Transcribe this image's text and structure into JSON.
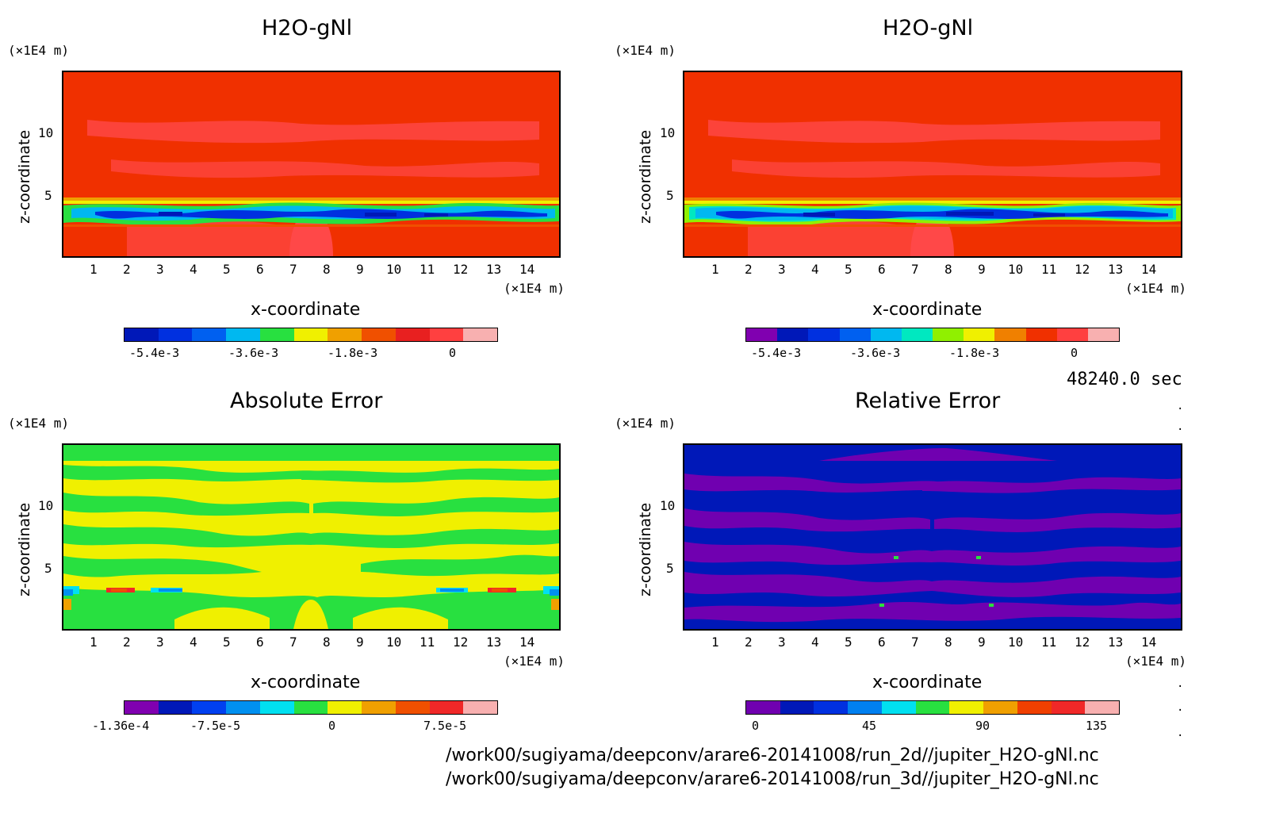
{
  "panels": [
    {
      "title": "H2O-gNl",
      "y_unit": "(×1E4 m)",
      "x_unit": "(×1E4 m)",
      "xlabel": "x-coordinate",
      "ylabel": "z-coordinate",
      "colorbar_labels": [
        "-5.4e-3",
        "-3.6e-3",
        "-1.8e-3",
        "0"
      ],
      "colors": [
        "#0018b8",
        "#0030e0",
        "#0060f0",
        "#00b8f0",
        "#28e040",
        "#f0f000",
        "#f0a000",
        "#f05000",
        "#e82020",
        "#ff4040",
        "#f8b0b0"
      ]
    },
    {
      "title": "H2O-gNl",
      "y_unit": "(×1E4 m)",
      "x_unit": "(×1E4 m)",
      "xlabel": "x-coordinate",
      "ylabel": "z-coordinate",
      "colorbar_labels": [
        "-5.4e-3",
        "-3.6e-3",
        "-1.8e-3",
        "0"
      ],
      "colors": [
        "#8000b0",
        "#0018b8",
        "#0030e0",
        "#0060f0",
        "#00b8f0",
        "#00e8c0",
        "#90f000",
        "#f0f000",
        "#f08000",
        "#f03000",
        "#ff4040",
        "#f8b0b0"
      ]
    },
    {
      "title": "Absolute Error",
      "y_unit": "(×1E4 m)",
      "x_unit": "(×1E4 m)",
      "xlabel": "x-coordinate",
      "ylabel": "z-coordinate",
      "colorbar_labels": [
        "-1.36e-4",
        "-7.5e-5",
        "0",
        "7.5e-5"
      ],
      "colors": [
        "#8000b0",
        "#0018b8",
        "#0040f0",
        "#0090f0",
        "#00e0f0",
        "#28e040",
        "#f0f000",
        "#f0a000",
        "#f05000",
        "#f02828",
        "#f8b0b0"
      ]
    },
    {
      "title": "Relative Error",
      "y_unit": "(×1E4 m)",
      "x_unit": "(×1E4 m)",
      "xlabel": "x-coordinate",
      "ylabel": "z-coordinate",
      "colorbar_labels": [
        "0",
        "45",
        "90",
        "135"
      ],
      "colors": [
        "#7000b0",
        "#0018b8",
        "#0030e0",
        "#0080f0",
        "#00e0f0",
        "#28e040",
        "#f0f000",
        "#f0a000",
        "#f04000",
        "#f02828",
        "#f8b0b0"
      ]
    }
  ],
  "time_label": "48240.0 sec",
  "file_paths": [
    "/work00/sugiyama/deepconv/arare6-20141008/run_2d//jupiter_H2O-gNl.nc",
    "/work00/sugiyama/deepconv/arare6-20141008/run_3d//jupiter_H2O-gNl.nc"
  ],
  "chart_data": [
    {
      "type": "heatmap",
      "title": "H2O-gNl",
      "xlabel": "x-coordinate (×1E4 m)",
      "ylabel": "z-coordinate (×1E4 m)",
      "xlim": [
        0,
        15
      ],
      "ylim": [
        0,
        15
      ],
      "x_ticks": [
        1,
        2,
        3,
        4,
        5,
        6,
        7,
        8,
        9,
        10,
        11,
        12,
        13,
        14
      ],
      "y_ticks": [
        5,
        10
      ],
      "colorbar_ticks": [
        -0.0054,
        -0.0036,
        -0.0018,
        0
      ]
    },
    {
      "type": "heatmap",
      "title": "H2O-gNl",
      "xlabel": "x-coordinate (×1E4 m)",
      "ylabel": "z-coordinate (×1E4 m)",
      "xlim": [
        0,
        15
      ],
      "ylim": [
        0,
        15
      ],
      "x_ticks": [
        1,
        2,
        3,
        4,
        5,
        6,
        7,
        8,
        9,
        10,
        11,
        12,
        13,
        14
      ],
      "y_ticks": [
        5,
        10
      ],
      "colorbar_ticks": [
        -0.0054,
        -0.0036,
        -0.0018,
        0
      ]
    },
    {
      "type": "heatmap",
      "title": "Absolute Error",
      "xlabel": "x-coordinate (×1E4 m)",
      "ylabel": "z-coordinate (×1E4 m)",
      "xlim": [
        0,
        15
      ],
      "ylim": [
        0,
        15
      ],
      "x_ticks": [
        1,
        2,
        3,
        4,
        5,
        6,
        7,
        8,
        9,
        10,
        11,
        12,
        13,
        14
      ],
      "y_ticks": [
        5,
        10
      ],
      "colorbar_ticks": [
        -0.000136,
        -7.5e-05,
        0,
        7.5e-05
      ]
    },
    {
      "type": "heatmap",
      "title": "Relative Error",
      "xlabel": "x-coordinate (×1E4 m)",
      "ylabel": "z-coordinate (×1E4 m)",
      "xlim": [
        0,
        15
      ],
      "ylim": [
        0,
        15
      ],
      "x_ticks": [
        1,
        2,
        3,
        4,
        5,
        6,
        7,
        8,
        9,
        10,
        11,
        12,
        13,
        14
      ],
      "y_ticks": [
        5,
        10
      ],
      "colorbar_ticks": [
        0,
        45,
        90,
        135
      ]
    }
  ]
}
